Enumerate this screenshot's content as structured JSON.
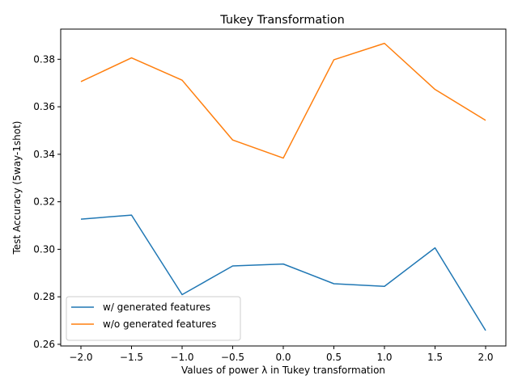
{
  "chart_data": {
    "type": "line",
    "title": "Tukey Transformation",
    "xlabel": "Values of power λ in Tukey transformation",
    "ylabel": "Test Accuracy (5way-1shot)",
    "x": [
      -2.0,
      -1.5,
      -1.0,
      -0.5,
      0.0,
      0.5,
      1.0,
      1.5,
      2.0
    ],
    "xticks": [
      -2.0,
      -1.5,
      -1.0,
      -0.5,
      0.0,
      0.5,
      1.0,
      1.5,
      2.0
    ],
    "xtick_labels": [
      "−2.0",
      "−1.5",
      "−1.0",
      "−0.5",
      "0.0",
      "0.5",
      "1.0",
      "1.5",
      "2.0"
    ],
    "yticks": [
      0.26,
      0.28,
      0.3,
      0.32,
      0.34,
      0.36,
      0.38
    ],
    "ytick_labels": [
      "0.26",
      "0.28",
      "0.30",
      "0.32",
      "0.34",
      "0.36",
      "0.38"
    ],
    "xlim": [
      -2.2,
      2.2
    ],
    "ylim": [
      0.2593,
      0.3927
    ],
    "grid": false,
    "legend_position": "lower-left",
    "series": [
      {
        "name": "w/ generated features",
        "color": "#1f77b4",
        "values": [
          0.3127,
          0.3144,
          0.2809,
          0.293,
          0.2938,
          0.2855,
          0.2844,
          0.3006,
          0.2658
        ]
      },
      {
        "name": "w/o generated features",
        "color": "#ff7f0e",
        "values": [
          0.3706,
          0.3806,
          0.3712,
          0.346,
          0.3384,
          0.3798,
          0.3867,
          0.3673,
          0.3543
        ]
      }
    ]
  }
}
